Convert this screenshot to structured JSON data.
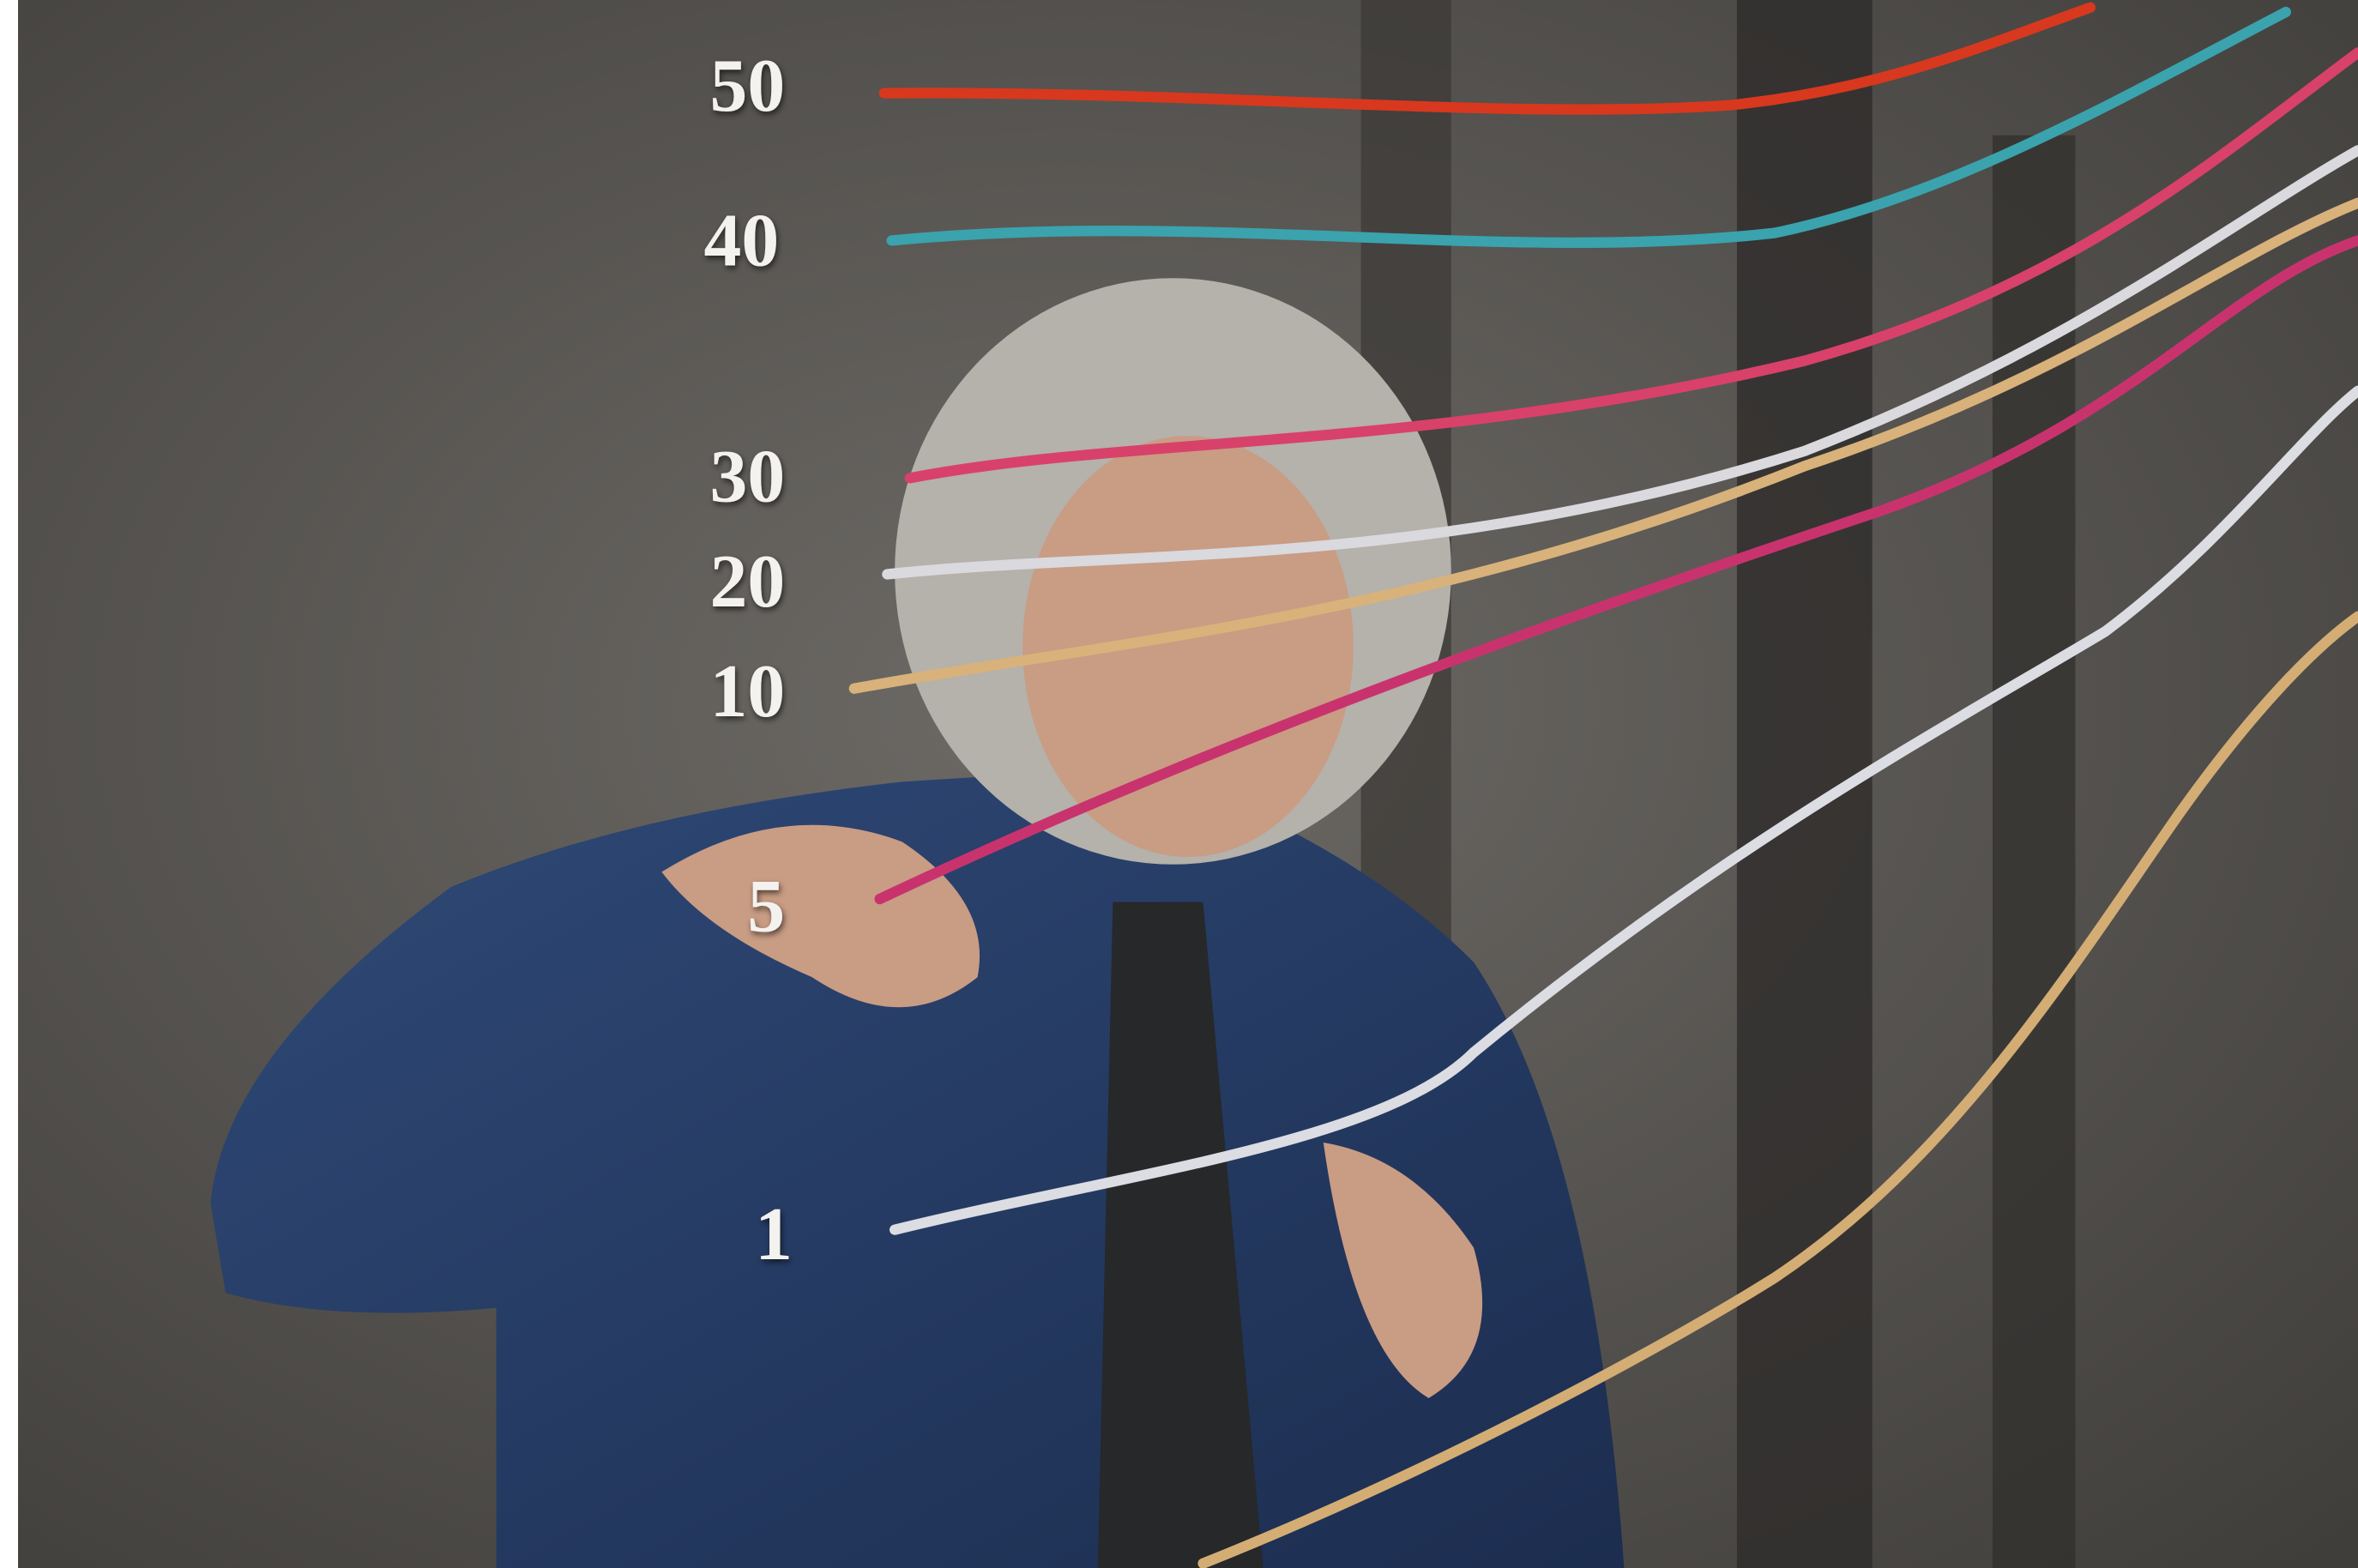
{
  "labels": [
    "50",
    "40",
    "30",
    "20",
    "10",
    "5",
    "1"
  ]
}
